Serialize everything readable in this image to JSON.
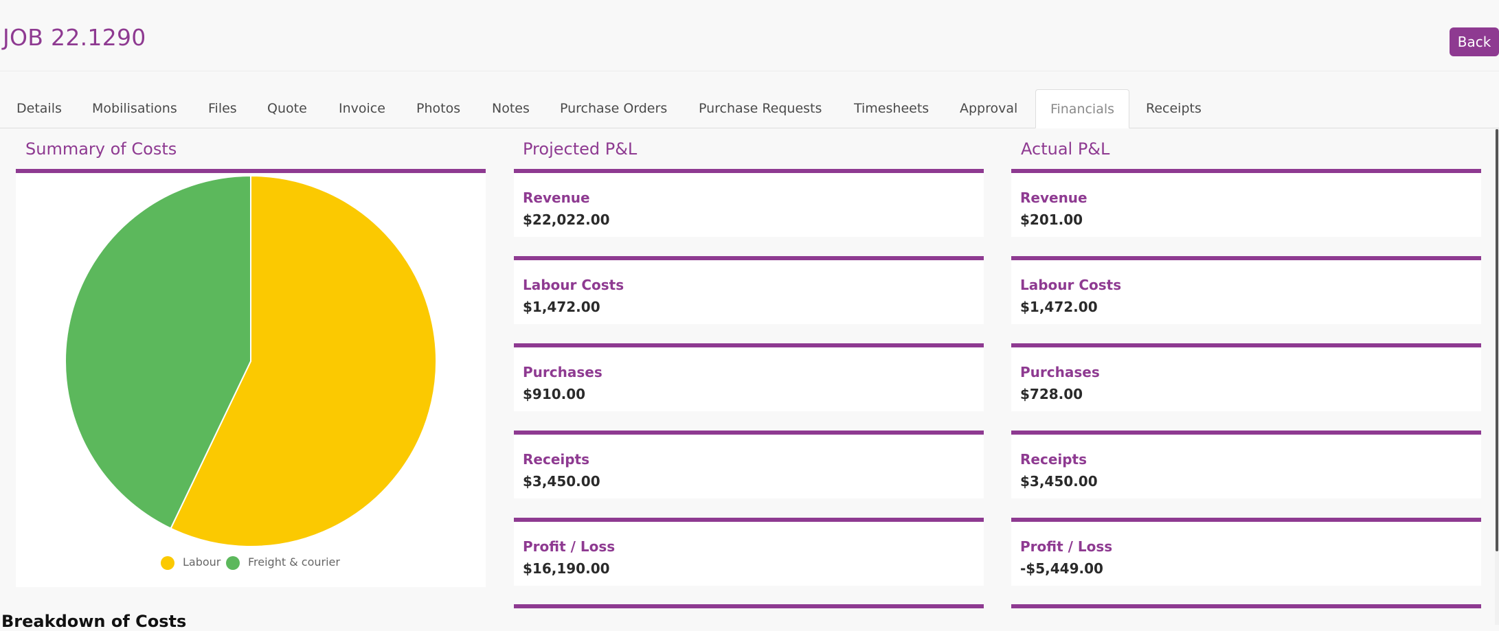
{
  "header": {
    "job_title": "JOB 22.1290",
    "back_label": "Back"
  },
  "tabs": [
    {
      "label": "Details"
    },
    {
      "label": "Mobilisations"
    },
    {
      "label": "Files"
    },
    {
      "label": "Quote"
    },
    {
      "label": "Invoice"
    },
    {
      "label": "Photos"
    },
    {
      "label": "Notes"
    },
    {
      "label": "Purchase Orders"
    },
    {
      "label": "Purchase Requests"
    },
    {
      "label": "Timesheets"
    },
    {
      "label": "Approval"
    },
    {
      "label": "Financials",
      "active": true
    },
    {
      "label": "Receipts"
    }
  ],
  "summary": {
    "title": "Summary of Costs"
  },
  "chart_data": {
    "type": "pie",
    "title": "",
    "labels": [
      "Labour",
      "Freight & courier"
    ],
    "values": [
      1472,
      1106
    ],
    "colors": [
      "#fbc901",
      "#5cb85c"
    ],
    "legend_position": "bottom"
  },
  "projected": {
    "title": "Projected P&L",
    "cards": [
      {
        "label": "Revenue",
        "value": "$22,022.00"
      },
      {
        "label": "Labour Costs",
        "value": "$1,472.00"
      },
      {
        "label": "Purchases",
        "value": "$910.00"
      },
      {
        "label": "Receipts",
        "value": "$3,450.00"
      },
      {
        "label": "Profit / Loss",
        "value": "$16,190.00"
      }
    ]
  },
  "actual": {
    "title": "Actual P&L",
    "cards": [
      {
        "label": "Revenue",
        "value": "$201.00"
      },
      {
        "label": "Labour Costs",
        "value": "$1,472.00"
      },
      {
        "label": "Purchases",
        "value": "$728.00"
      },
      {
        "label": "Receipts",
        "value": "$3,450.00"
      },
      {
        "label": "Profit / Loss",
        "value": "-$5,449.00"
      }
    ]
  },
  "breakdown": {
    "title": "Breakdown of Costs"
  },
  "colors": {
    "accent": "#8e3a91"
  }
}
